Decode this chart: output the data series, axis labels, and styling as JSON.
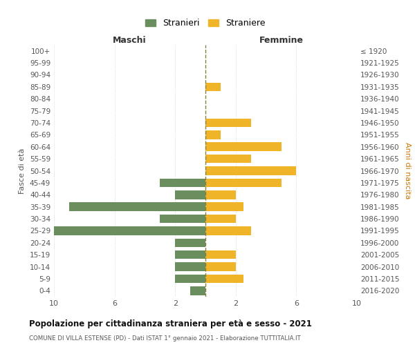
{
  "age_groups": [
    "100+",
    "95-99",
    "90-94",
    "85-89",
    "80-84",
    "75-79",
    "70-74",
    "65-69",
    "60-64",
    "55-59",
    "50-54",
    "45-49",
    "40-44",
    "35-39",
    "30-34",
    "25-29",
    "20-24",
    "15-19",
    "10-14",
    "5-9",
    "0-4"
  ],
  "birth_years": [
    "≤ 1920",
    "1921-1925",
    "1926-1930",
    "1931-1935",
    "1936-1940",
    "1941-1945",
    "1946-1950",
    "1951-1955",
    "1956-1960",
    "1961-1965",
    "1966-1970",
    "1971-1975",
    "1976-1980",
    "1981-1985",
    "1986-1990",
    "1991-1995",
    "1996-2000",
    "2001-2005",
    "2006-2010",
    "2011-2015",
    "2016-2020"
  ],
  "males": [
    0,
    0,
    0,
    0,
    0,
    0,
    0,
    0,
    0,
    0,
    0,
    3,
    2,
    9,
    3,
    10,
    2,
    2,
    2,
    2,
    1
  ],
  "females": [
    0,
    0,
    0,
    1,
    0,
    0,
    3,
    1,
    5,
    3,
    6,
    5,
    2,
    2.5,
    2,
    3,
    0,
    2,
    2,
    2.5,
    0
  ],
  "male_color": "#6b8e5e",
  "female_color": "#f0b429",
  "center_line_color": "#808040",
  "xlim": 10,
  "xlabel_left": "Maschi",
  "xlabel_right": "Femmine",
  "ylabel_left": "Fasce di età",
  "ylabel_right": "Anni di nascita",
  "legend_male": "Stranieri",
  "legend_female": "Straniere",
  "title": "Popolazione per cittadinanza straniera per età e sesso - 2021",
  "subtitle": "COMUNE DI VILLA ESTENSE (PD) - Dati ISTAT 1° gennaio 2021 - Elaborazione TUTTITALIA.IT",
  "bg_color": "#ffffff",
  "grid_color": "#d0d0d0"
}
